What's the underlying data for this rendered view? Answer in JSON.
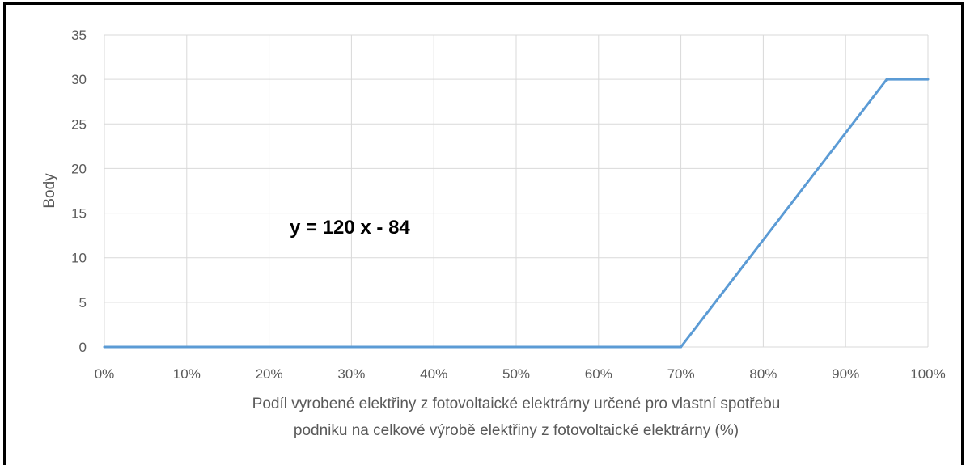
{
  "chart_data": {
    "type": "line",
    "x": [
      0,
      70,
      95,
      100
    ],
    "series": [
      {
        "values": [
          0,
          0,
          30,
          30
        ],
        "color": "#5b9bd5"
      }
    ],
    "x_ticks": [
      "0%",
      "10%",
      "20%",
      "30%",
      "40%",
      "50%",
      "60%",
      "70%",
      "80%",
      "90%",
      "100%"
    ],
    "y_ticks": [
      "0",
      "5",
      "10",
      "15",
      "20",
      "25",
      "30",
      "35"
    ],
    "xlim": [
      0,
      100
    ],
    "ylim": [
      0,
      35
    ],
    "grid": true,
    "ylabel": "Body",
    "xlabel_line1": "Podíl vyrobené elektřiny z fotovoltaické elektrárny určené pro vlastní spotřebu",
    "xlabel_line2": "podniku na celkové výrobě elektřiny z fotovoltaické elektrárny (%)",
    "annotation": "y = 120 x - 84"
  }
}
